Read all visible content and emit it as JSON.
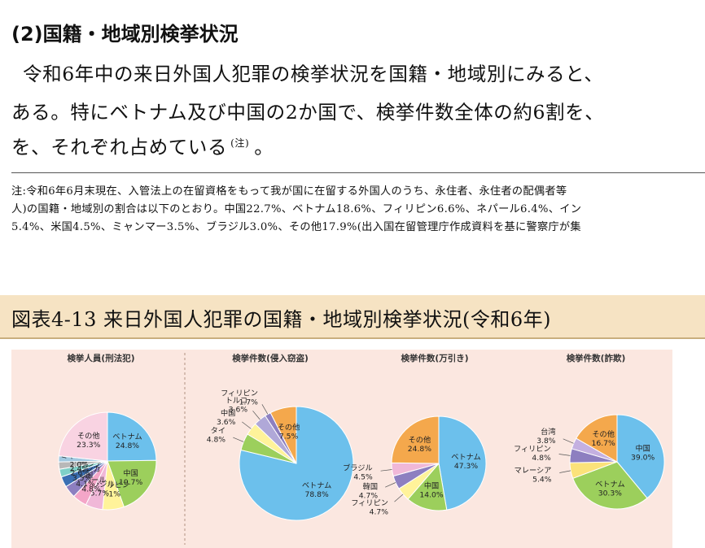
{
  "section": {
    "heading": "(2)国籍・地域別検挙状況",
    "body": [
      "令和6年中の来日外国人犯罪の検挙状況を国籍・地域別にみると、",
      "ある。特にベトナム及び中国の2か国で、検挙件数全体の約6割を、",
      "を、それぞれ占めている"
    ],
    "note_ref": "(注)",
    "body_end": "。"
  },
  "note": [
    "注:令和6年6月末現在、入管法上の在留資格をもって我が国に在留する外国人のうち、永住者、永住者の配偶者等",
    "人)の国籍・地域別の割合は以下のとおり。中国22.7%、ベトナム18.6%、フィリピン6.6%、ネパール6.4%、イン",
    "5.4%、米国4.5%、ミャンマー3.5%、ブラジル3.0%、その他17.9%(出入国在留管理庁作成資料を基に警察庁が集"
  ],
  "figure": {
    "title": "図表4-13 来日外国人犯罪の国籍・地域別検挙状況(令和6年)"
  },
  "colors": {
    "vietnam": "#6cc0ec",
    "china": "#9ccf5c",
    "philippines": "#fff39a",
    "nepal": "#f4a6c8",
    "korea": "#8d7fc0",
    "srilanka": "#3a6fb3",
    "indonesia": "#7fd0c8",
    "usa": "#b8b8b8",
    "myanmar": "#a0c8e0",
    "brazil": "#f0b8d8",
    "malaysia": "#fbe27a",
    "thailand": "#e8f2a0",
    "turkey": "#b0a8d8",
    "taiwan": "#c4b0e0",
    "other_pink": "#f9d3e2",
    "other_orange": "#f4a84c"
  },
  "chart_data": [
    {
      "type": "pie",
      "title": "検挙人員(刑法犯)",
      "slices": [
        {
          "label": "ベトナム",
          "value": 24.8,
          "value_label": "24.8%",
          "color_key": "vietnam"
        },
        {
          "label": "中国",
          "value": 19.7,
          "value_label": "19.7%",
          "color_key": "china"
        },
        {
          "label": "フィリピン",
          "value": 7.1,
          "value_label": "7.1%",
          "color_key": "philippines"
        },
        {
          "label": "ブラジル",
          "value": 5.7,
          "value_label": "5.7%",
          "color_key": "brazil"
        },
        {
          "label": "ネパール",
          "value": 4.8,
          "value_label": "4.8%",
          "color_key": "nepal"
        },
        {
          "label": "韓国",
          "value": 4.1,
          "value_label": "4.1%",
          "color_key": "korea"
        },
        {
          "label": "スリランカ",
          "value": 3.5,
          "value_label": "3.5%",
          "color_key": "srilanka"
        },
        {
          "label": "インドネシア",
          "value": 2.6,
          "value_label": "2.6%",
          "color_key": "indonesia"
        },
        {
          "label": "米国",
          "value": 2.4,
          "value_label": "2.4%",
          "color_key": "usa"
        },
        {
          "label": "ミャンマー",
          "value": 2.0,
          "value_label": "2.0%",
          "color_key": "myanmar"
        },
        {
          "label": "その他",
          "value": 23.3,
          "value_label": "23.3%",
          "color_key": "other_pink"
        }
      ]
    },
    {
      "type": "pie",
      "title": "検挙件数(侵入窃盗)",
      "slices": [
        {
          "label": "ベトナム",
          "value": 78.8,
          "value_label": "78.8%",
          "color_key": "vietnam"
        },
        {
          "label": "タイ",
          "value": 4.8,
          "value_label": "4.8%",
          "color_key": "china"
        },
        {
          "label": "中国",
          "value": 3.6,
          "value_label": "3.6%",
          "color_key": "philippines"
        },
        {
          "label": "トルコ",
          "value": 3.6,
          "value_label": "3.6%",
          "color_key": "turkey"
        },
        {
          "label": "フィリピン",
          "value": 1.7,
          "value_label": "1.7%",
          "color_key": "korea"
        },
        {
          "label": "その他",
          "value": 7.5,
          "value_label": "7.5%",
          "color_key": "other_orange"
        }
      ]
    },
    {
      "type": "pie",
      "title": "検挙件数(万引き)",
      "slices": [
        {
          "label": "ベトナム",
          "value": 47.3,
          "value_label": "47.3%",
          "color_key": "vietnam"
        },
        {
          "label": "中国",
          "value": 14.0,
          "value_label": "14.0%",
          "color_key": "china"
        },
        {
          "label": "フィリピン",
          "value": 4.7,
          "value_label": "4.7%",
          "color_key": "philippines"
        },
        {
          "label": "韓国",
          "value": 4.7,
          "value_label": "4.7%",
          "color_key": "korea"
        },
        {
          "label": "ブラジル",
          "value": 4.5,
          "value_label": "4.5%",
          "color_key": "brazil"
        },
        {
          "label": "その他",
          "value": 24.8,
          "value_label": "24.8%",
          "color_key": "other_orange"
        }
      ]
    },
    {
      "type": "pie",
      "title": "検挙件数(詐欺)",
      "slices": [
        {
          "label": "中国",
          "value": 39.0,
          "value_label": "39.0%",
          "color_key": "vietnam"
        },
        {
          "label": "ベトナム",
          "value": 30.3,
          "value_label": "30.3%",
          "color_key": "china"
        },
        {
          "label": "マレーシア",
          "value": 5.4,
          "value_label": "5.4%",
          "color_key": "malaysia"
        },
        {
          "label": "フィリピン",
          "value": 4.8,
          "value_label": "4.8%",
          "color_key": "korea"
        },
        {
          "label": "台湾",
          "value": 3.8,
          "value_label": "3.8%",
          "color_key": "taiwan"
        },
        {
          "label": "その他",
          "value": 16.7,
          "value_label": "16.7%",
          "color_key": "other_orange"
        }
      ]
    }
  ]
}
